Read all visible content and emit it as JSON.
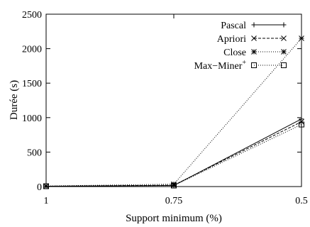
{
  "chart_data": {
    "type": "line",
    "xlabel": "Support minimum (%)",
    "ylabel": "Durée (s)",
    "x": [
      "1",
      "0.75",
      "0.5"
    ],
    "ylim": [
      0,
      2500
    ],
    "yticks": [
      "0",
      "500",
      "1000",
      "1500",
      "2000",
      "2500"
    ],
    "grid": false,
    "legend_position": "top-right",
    "series": [
      {
        "name": "Pascal",
        "marker": "plus",
        "dash": "solid",
        "values": [
          5,
          15,
          980
        ]
      },
      {
        "name": "Apriori",
        "marker": "cross",
        "dash": "dashed",
        "values": [
          5,
          20,
          940
        ]
      },
      {
        "name": "Close",
        "marker": "star",
        "dash": "dotted",
        "values": [
          8,
          35,
          2150
        ]
      },
      {
        "name": "Max−Miner",
        "name_sup": "+",
        "marker": "square",
        "dash": "dotted",
        "values": [
          5,
          15,
          900
        ]
      }
    ]
  }
}
